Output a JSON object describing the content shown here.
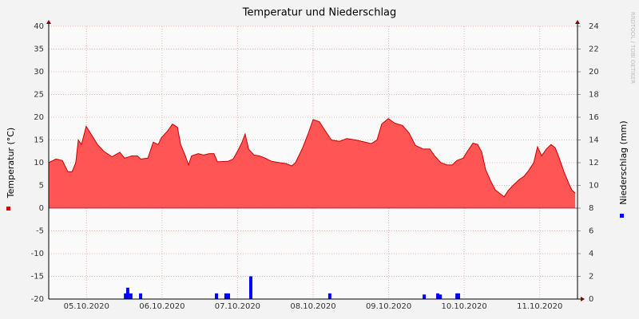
{
  "chart_data": {
    "type": "area_bar",
    "title": "Temperatur und Niederschlag",
    "ylabel": "Temperatur (°C)",
    "y2label": "Niederschlag (mm)",
    "watermark": "RRDTOOL / TOBI OETIKER",
    "xlim": [
      0,
      168
    ],
    "xticks": [
      {
        "value": 12,
        "label": "05.10.2020"
      },
      {
        "value": 36,
        "label": "06.10.2020"
      },
      {
        "value": 60,
        "label": "07.10.2020"
      },
      {
        "value": 84,
        "label": "08.10.2020"
      },
      {
        "value": 108,
        "label": "09.10.2020"
      },
      {
        "value": 132,
        "label": "10.10.2020"
      },
      {
        "value": 156,
        "label": "11.10.2020"
      }
    ],
    "ylim": [
      -20,
      40
    ],
    "yticks": [
      -20,
      -15,
      -10,
      -5,
      0,
      5,
      10,
      15,
      20,
      25,
      30,
      35,
      40
    ],
    "y2lim": [
      0,
      24
    ],
    "y2ticks": [
      0,
      2,
      4,
      6,
      8,
      10,
      12,
      14,
      16,
      18,
      20,
      22,
      24
    ],
    "grid": true,
    "series": [
      {
        "type": "area",
        "color": "#ff5555",
        "x": [
          0,
          2.3,
          4.3,
          6.1,
          7.4,
          8.6,
          9.4,
          10.4,
          11.9,
          13.7,
          15.5,
          17.5,
          20.1,
          22.6,
          24.1,
          26.4,
          28.2,
          29.2,
          31.5,
          33.2,
          34.8,
          35.8,
          37.8,
          39.3,
          40.9,
          41.9,
          43.4,
          44.4,
          45.4,
          47.5,
          49.2,
          51.0,
          52.5,
          53.6,
          56.9,
          58.6,
          60.2,
          61.4,
          62.4,
          63.5,
          65.2,
          67.0,
          68.8,
          70.8,
          73.4,
          75.4,
          77.2,
          78.4,
          80.5,
          82.5,
          84.0,
          86.0,
          87.6,
          89.8,
          92.4,
          94.7,
          97.5,
          100.0,
          102.5,
          104.3,
          105.8,
          107.9,
          109.9,
          112.4,
          114.5,
          116.5,
          119.0,
          121.1,
          122.6,
          124.6,
          126.6,
          128.2,
          129.7,
          131.7,
          133.0,
          134.8,
          136.3,
          137.6,
          138.8,
          140.4,
          141.9,
          143.4,
          144.7,
          145.9,
          147.5,
          149.5,
          151.0,
          152.5,
          154.1,
          155.3,
          156.6,
          158.1,
          159.6,
          160.9,
          162.2,
          163.7,
          165.2,
          166.2,
          167.3
        ],
        "values": [
          10,
          10.8,
          10.5,
          8,
          8,
          10,
          15,
          14,
          18,
          16,
          14,
          12.5,
          11.3,
          12.3,
          11,
          11.5,
          11.5,
          10.8,
          11,
          14.5,
          14,
          15.5,
          17,
          18.5,
          17.8,
          14,
          11.5,
          9.5,
          11.5,
          12,
          11.7,
          12,
          12,
          10.2,
          10.3,
          10.8,
          12.8,
          14.5,
          16.3,
          13,
          11.7,
          11.5,
          11,
          10.3,
          10,
          9.8,
          9.3,
          10,
          13,
          16.5,
          19.5,
          19,
          17.3,
          15,
          14.7,
          15.3,
          15,
          14.6,
          14.2,
          15,
          18.5,
          19.7,
          18.7,
          18.2,
          16.5,
          13.8,
          13,
          13,
          11.5,
          10,
          9.5,
          9.5,
          10.5,
          11,
          12.5,
          14.3,
          14,
          12.3,
          8.5,
          6,
          4,
          3.2,
          2.5,
          3.8,
          5,
          6.3,
          7,
          8.3,
          10,
          13.5,
          11.5,
          13,
          14,
          13.3,
          11,
          8,
          5.5,
          4,
          3.3
        ]
      },
      {
        "type": "bar",
        "axis": "y2",
        "color": "#0000ff",
        "x": [
          24.4,
          25.1,
          26.1,
          29.2,
          53.3,
          56.3,
          57.1,
          64.2,
          89.3,
          119.3,
          123.6,
          124.4,
          129.7,
          130.2
        ],
        "values": [
          0.5,
          1.0,
          0.5,
          0.5,
          0.5,
          0.5,
          0.5,
          2.0,
          0.5,
          0.4,
          0.5,
          0.4,
          0.5,
          0.5
        ]
      }
    ]
  }
}
